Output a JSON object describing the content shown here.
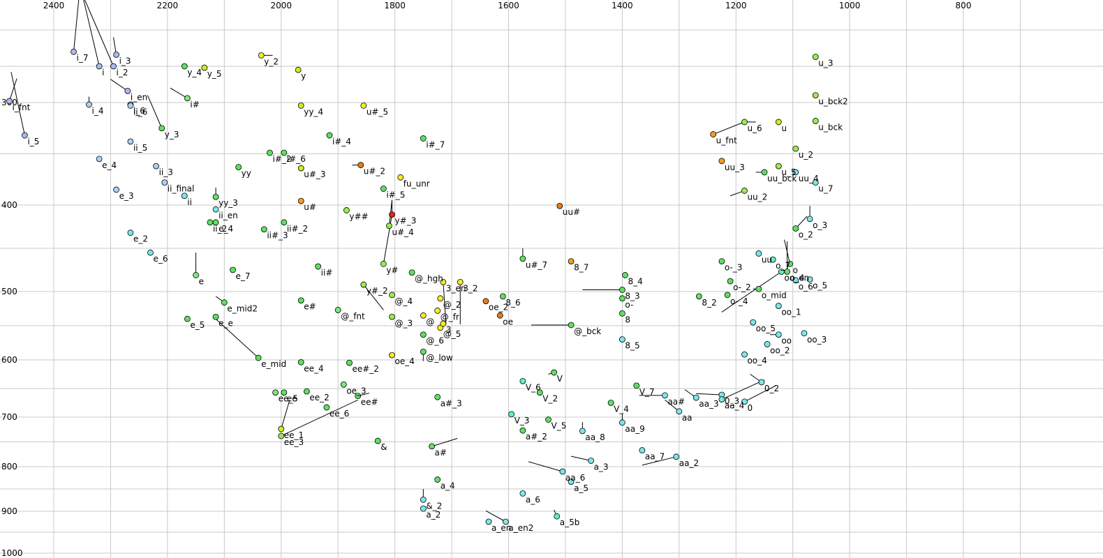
{
  "chart_data": {
    "type": "scatter",
    "title": "",
    "xlabel": "",
    "ylabel": "",
    "x_axis": {
      "reversed": true,
      "ticks": [
        2400,
        2200,
        2000,
        1800,
        1600,
        1400,
        1200,
        1000,
        800
      ]
    },
    "y_axis": {
      "reversed": true,
      "ticks": [
        300,
        400,
        500,
        600,
        700,
        800,
        900,
        1000
      ]
    },
    "grid": true,
    "legend": "none",
    "palette": {
      "v1": "#aab8f0",
      "v2": "#a9d0f5",
      "v3": "#7ee6e6",
      "v4": "#5ef0c8",
      "g1": "#7de87d",
      "g2": "#60e060",
      "g3": "#9aeb50",
      "y1": "#ccee22",
      "y2": "#f0ee22",
      "o1": "#f0a020",
      "o2": "#e87b18",
      "r1": "#e02818"
    },
    "points": [
      {
        "label": "i_7",
        "x": 2365,
        "y": 230,
        "c": "v1",
        "t": [
          2355,
          150
        ]
      },
      {
        "label": "i",
        "x": 2320,
        "y": 250,
        "c": "v1",
        "t": [
          2350,
          150
        ]
      },
      {
        "label": "i_3",
        "x": 2290,
        "y": 234,
        "c": "v1",
        "t": [
          2295,
          210
        ]
      },
      {
        "label": "i_2",
        "x": 2295,
        "y": 250,
        "c": "v1",
        "t": [
          2350,
          150
        ]
      },
      {
        "label": "i_en",
        "x": 2270,
        "y": 284,
        "c": "v1",
        "t": [
          2300,
          268
        ]
      },
      {
        "label": "i_6",
        "x": 2265,
        "y": 302,
        "c": "v2"
      },
      {
        "label": "i_fnt",
        "x": 2478,
        "y": 298,
        "c": "v1",
        "t": [
          2465,
          267
        ]
      },
      {
        "label": "i_4",
        "x": 2338,
        "y": 302,
        "c": "v2",
        "t": [
          2338,
          292
        ]
      },
      {
        "label": "i_5",
        "x": 2451,
        "y": 332,
        "c": "v1",
        "t": [
          2475,
          258
        ]
      },
      {
        "label": "ii_6",
        "x": 2265,
        "y": 303,
        "c": "v2"
      },
      {
        "label": "ii_5",
        "x": 2265,
        "y": 338,
        "c": "v2"
      },
      {
        "label": "e_4",
        "x": 2320,
        "y": 355,
        "c": "v2"
      },
      {
        "label": "e_3",
        "x": 2290,
        "y": 385,
        "c": "v2"
      },
      {
        "label": "ii_3",
        "x": 2220,
        "y": 362,
        "c": "v2"
      },
      {
        "label": "ii_final",
        "x": 2205,
        "y": 378,
        "c": "v2"
      },
      {
        "label": "ii",
        "x": 2170,
        "y": 391,
        "c": "v3"
      },
      {
        "label": "y_3",
        "x": 2210,
        "y": 325,
        "c": "g2",
        "t": [
          2235,
          290
        ]
      },
      {
        "label": "i#",
        "x": 2165,
        "y": 294,
        "c": "g1",
        "t": [
          2195,
          280
        ]
      },
      {
        "label": "y_4",
        "x": 2170,
        "y": 250,
        "c": "g2"
      },
      {
        "label": "y_5",
        "x": 2135,
        "y": 252,
        "c": "y1"
      },
      {
        "label": "yy",
        "x": 2075,
        "y": 363,
        "c": "g2"
      },
      {
        "label": "yy_3",
        "x": 2115,
        "y": 392,
        "c": "g2",
        "t": [
          2115,
          383
        ]
      },
      {
        "label": "ii_en",
        "x": 2115,
        "y": 405,
        "c": "v3"
      },
      {
        "label": "ii_2",
        "x": 2125,
        "y": 420,
        "c": "g2"
      },
      {
        "label": "e_4",
        "x": 2115,
        "y": 420,
        "c": "g2"
      },
      {
        "label": "e_2",
        "x": 2265,
        "y": 432,
        "c": "v3"
      },
      {
        "label": "e_6",
        "x": 2230,
        "y": 455,
        "c": "v3"
      },
      {
        "label": "e",
        "x": 2150,
        "y": 481,
        "c": "g1",
        "t": [
          2150,
          455
        ]
      },
      {
        "label": "e_7",
        "x": 2085,
        "y": 475,
        "c": "g2"
      },
      {
        "label": "e_mid2",
        "x": 2100,
        "y": 516,
        "c": "g2",
        "t": [
          2115,
          507
        ]
      },
      {
        "label": "e_5",
        "x": 2165,
        "y": 540,
        "c": "g2"
      },
      {
        "label": "e_e",
        "x": 2115,
        "y": 537,
        "c": "g2"
      },
      {
        "label": "e_mid",
        "x": 2040,
        "y": 597,
        "c": "g2",
        "t": [
          2115,
          540
        ]
      },
      {
        "label": "i#_2",
        "x": 2020,
        "y": 349,
        "c": "g2"
      },
      {
        "label": "i#_6",
        "x": 1995,
        "y": 349,
        "c": "g2"
      },
      {
        "label": "ii#_3",
        "x": 2030,
        "y": 428,
        "c": "g2"
      },
      {
        "label": "ii#_2",
        "x": 1995,
        "y": 420,
        "c": "g2"
      },
      {
        "label": "y_2",
        "x": 2035,
        "y": 235,
        "c": "y2",
        "t": [
          2015,
          235
        ]
      },
      {
        "label": "y",
        "x": 1970,
        "y": 255,
        "c": "y1"
      },
      {
        "label": "yy_4",
        "x": 1965,
        "y": 303,
        "c": "y1"
      },
      {
        "label": "u#_3",
        "x": 1965,
        "y": 364,
        "c": "y1"
      },
      {
        "label": "u#",
        "x": 1965,
        "y": 396,
        "c": "o1"
      },
      {
        "label": "i#_4",
        "x": 1915,
        "y": 332,
        "c": "g2"
      },
      {
        "label": "ii#",
        "x": 1935,
        "y": 471,
        "c": "g2"
      },
      {
        "label": "e#",
        "x": 1965,
        "y": 513,
        "c": "g2"
      },
      {
        "label": "@_fnt",
        "x": 1900,
        "y": 527,
        "c": "g1"
      },
      {
        "label": "ee_4",
        "x": 1965,
        "y": 604,
        "c": "g2"
      },
      {
        "label": "ee#_2",
        "x": 1880,
        "y": 605,
        "c": "g2"
      },
      {
        "label": "oe_3",
        "x": 1890,
        "y": 643,
        "c": "g1"
      },
      {
        "label": "ee#",
        "x": 1865,
        "y": 663,
        "c": "g2",
        "t": [
          1845,
          658
        ]
      },
      {
        "label": "ee_5",
        "x": 2010,
        "y": 657,
        "c": "g1"
      },
      {
        "label": "ee",
        "x": 1995,
        "y": 657,
        "c": "g2"
      },
      {
        "label": "ee_2",
        "x": 1955,
        "y": 655,
        "c": "g2"
      },
      {
        "label": "ee_6",
        "x": 1920,
        "y": 683,
        "c": "g2"
      },
      {
        "label": "ee_1",
        "x": 2000,
        "y": 724,
        "c": "y1",
        "t": [
          1985,
          670
        ]
      },
      {
        "label": "ee_3",
        "x": 2000,
        "y": 738,
        "c": "g3",
        "t": [
          1865,
          670
        ]
      },
      {
        "label": "&",
        "x": 1830,
        "y": 748,
        "c": "g2"
      },
      {
        "label": "u#_5",
        "x": 1855,
        "y": 303,
        "c": "y2"
      },
      {
        "label": "u#_2",
        "x": 1860,
        "y": 361,
        "c": "o2",
        "t": [
          1875,
          361
        ]
      },
      {
        "label": "i#_5",
        "x": 1820,
        "y": 384,
        "c": "g2"
      },
      {
        "label": "y##",
        "x": 1885,
        "y": 406,
        "c": "g3"
      },
      {
        "label": "y#_3",
        "x": 1805,
        "y": 411,
        "c": "r1",
        "t": [
          1805,
          395
        ]
      },
      {
        "label": "u#_4",
        "x": 1810,
        "y": 424,
        "c": "g3",
        "t": [
          1805,
          395
        ]
      },
      {
        "label": "y#",
        "x": 1820,
        "y": 468,
        "c": "g3",
        "t": [
          1805,
          411
        ]
      },
      {
        "label": "fu_unr",
        "x": 1790,
        "y": 373,
        "c": "y2"
      },
      {
        "label": "i#_7",
        "x": 1750,
        "y": 335,
        "c": "g2"
      },
      {
        "label": "y#_2",
        "x": 1855,
        "y": 492,
        "c": "g3",
        "t": [
          1820,
          527
        ]
      },
      {
        "label": "@_hgh",
        "x": 1770,
        "y": 478,
        "c": "g2"
      },
      {
        "label": "@_4",
        "x": 1805,
        "y": 505,
        "c": "g3"
      },
      {
        "label": "@_3",
        "x": 1805,
        "y": 537,
        "c": "g3"
      },
      {
        "label": "oe_4",
        "x": 1805,
        "y": 593,
        "c": "y2"
      },
      {
        "label": "@_low",
        "x": 1750,
        "y": 588,
        "c": "g2",
        "t": [
          1750,
          602
        ]
      },
      {
        "label": "@",
        "x": 1750,
        "y": 535,
        "c": "y2"
      },
      {
        "label": "@_5",
        "x": 1720,
        "y": 553,
        "c": "y2"
      },
      {
        "label": "@_6",
        "x": 1750,
        "y": 563,
        "c": "g2"
      },
      {
        "label": "@_2",
        "x": 1720,
        "y": 510,
        "c": "y2"
      },
      {
        "label": "@_fr",
        "x": 1725,
        "y": 528,
        "c": "y2"
      },
      {
        "label": "3",
        "x": 1715,
        "y": 547,
        "c": "y2"
      },
      {
        "label": "3_en",
        "x": 1715,
        "y": 489,
        "c": "y2",
        "t": [
          1710,
          548
        ]
      },
      {
        "label": "3_2",
        "x": 1685,
        "y": 489,
        "c": "y2",
        "t": [
          1685,
          548
        ]
      },
      {
        "label": "oe_2",
        "x": 1640,
        "y": 514,
        "c": "o2"
      },
      {
        "label": "oe",
        "x": 1615,
        "y": 535,
        "c": "o2"
      },
      {
        "label": "8_6",
        "x": 1610,
        "y": 507,
        "c": "g2"
      },
      {
        "label": "u#_7",
        "x": 1575,
        "y": 462,
        "c": "g2",
        "t": [
          1575,
          450
        ]
      },
      {
        "label": "a#_3",
        "x": 1725,
        "y": 665,
        "c": "g2"
      },
      {
        "label": "a#",
        "x": 1735,
        "y": 759,
        "c": "g2",
        "t": [
          1690,
          743
        ]
      },
      {
        "label": "a_4",
        "x": 1725,
        "y": 829,
        "c": "g2"
      },
      {
        "label": "&_2",
        "x": 1750,
        "y": 874,
        "c": "v3",
        "t": [
          1750,
          850
        ]
      },
      {
        "label": "a_2",
        "x": 1750,
        "y": 894,
        "c": "v3"
      },
      {
        "label": "a_en",
        "x": 1635,
        "y": 925,
        "c": "v3"
      },
      {
        "label": "a_en2",
        "x": 1605,
        "y": 925,
        "c": "v3",
        "t": [
          1640,
          899
        ]
      },
      {
        "label": "V_6",
        "x": 1575,
        "y": 637,
        "c": "v4"
      },
      {
        "label": "V_2",
        "x": 1545,
        "y": 657,
        "c": "g2"
      },
      {
        "label": "V_3",
        "x": 1595,
        "y": 695,
        "c": "v4"
      },
      {
        "label": "V_5",
        "x": 1530,
        "y": 705,
        "c": "g2"
      },
      {
        "label": "a#_2",
        "x": 1575,
        "y": 727,
        "c": "g2"
      },
      {
        "label": "a_6",
        "x": 1575,
        "y": 860,
        "c": "v3"
      },
      {
        "label": "aa_6",
        "x": 1505,
        "y": 811,
        "c": "v3",
        "t": [
          1565,
          790
        ]
      },
      {
        "label": "a_5",
        "x": 1490,
        "y": 834,
        "c": "v3"
      },
      {
        "label": "a_5b",
        "x": 1515,
        "y": 912,
        "c": "v4",
        "t": [
          1520,
          897
        ]
      },
      {
        "label": "V",
        "x": 1520,
        "y": 622,
        "c": "g2",
        "t": [
          1530,
          625
        ]
      },
      {
        "label": "@_bck",
        "x": 1490,
        "y": 549,
        "c": "g2",
        "t": [
          1560,
          549
        ]
      },
      {
        "label": "8_7",
        "x": 1490,
        "y": 465,
        "c": "o1"
      },
      {
        "label": "uu#",
        "x": 1510,
        "y": 401,
        "c": "o2"
      },
      {
        "label": "aa_8",
        "x": 1470,
        "y": 728,
        "c": "v3",
        "t": [
          1470,
          710
        ]
      },
      {
        "label": "a_3",
        "x": 1455,
        "y": 788,
        "c": "v3",
        "t": [
          1490,
          779
        ]
      },
      {
        "label": "V_4",
        "x": 1420,
        "y": 675,
        "c": "g2"
      },
      {
        "label": "aa_9",
        "x": 1400,
        "y": 711,
        "c": "v3",
        "t": [
          1400,
          695
        ]
      },
      {
        "label": "V_7",
        "x": 1375,
        "y": 645,
        "c": "g2"
      },
      {
        "label": "aa_7",
        "x": 1365,
        "y": 767,
        "c": "v3"
      },
      {
        "label": "aa_2",
        "x": 1305,
        "y": 780,
        "c": "v3",
        "t": [
          1365,
          797
        ]
      },
      {
        "label": "8_4",
        "x": 1395,
        "y": 481,
        "c": "g2"
      },
      {
        "label": "8_3",
        "x": 1400,
        "y": 498,
        "c": "g2",
        "t": [
          1470,
          498
        ]
      },
      {
        "label": "o-",
        "x": 1400,
        "y": 510,
        "c": "g2"
      },
      {
        "label": "8",
        "x": 1400,
        "y": 532,
        "c": "g2"
      },
      {
        "label": "8_5",
        "x": 1400,
        "y": 570,
        "c": "v3"
      },
      {
        "label": "aa#",
        "x": 1325,
        "y": 662,
        "c": "v3",
        "t": [
          1370,
          662
        ]
      },
      {
        "label": "aa",
        "x": 1300,
        "y": 690,
        "c": "v3",
        "t": [
          1325,
          670
        ]
      },
      {
        "label": "aa_3",
        "x": 1270,
        "y": 666,
        "c": "v3",
        "t": [
          1290,
          652
        ]
      },
      {
        "label": "0_3",
        "x": 1225,
        "y": 661,
        "c": "v3",
        "t": [
          1270,
          659
        ]
      },
      {
        "label": "aa_4",
        "x": 1225,
        "y": 669,
        "c": "v3",
        "t": [
          1150,
          635
        ]
      },
      {
        "label": "0_2",
        "x": 1155,
        "y": 639,
        "c": "v3",
        "t": [
          1175,
          625
        ]
      },
      {
        "label": "0",
        "x": 1185,
        "y": 673,
        "c": "v3",
        "t": [
          1130,
          645
        ]
      },
      {
        "label": "8_2",
        "x": 1265,
        "y": 507,
        "c": "g2"
      },
      {
        "label": "o-_3",
        "x": 1225,
        "y": 465,
        "c": "g2"
      },
      {
        "label": "o-_2",
        "x": 1210,
        "y": 488,
        "c": "g2"
      },
      {
        "label": "o-_4",
        "x": 1215,
        "y": 505,
        "c": "g2"
      },
      {
        "label": "oo_4",
        "x": 1185,
        "y": 592,
        "c": "v3"
      },
      {
        "label": "oo_5",
        "x": 1170,
        "y": 545,
        "c": "v3"
      },
      {
        "label": "oo_2",
        "x": 1145,
        "y": 577,
        "c": "v3"
      },
      {
        "label": "oo",
        "x": 1125,
        "y": 563,
        "c": "v3",
        "t": [
          1140,
          563
        ]
      },
      {
        "label": "oo_1",
        "x": 1125,
        "y": 521,
        "c": "v3"
      },
      {
        "label": "o_mid",
        "x": 1160,
        "y": 497,
        "c": "g2",
        "t": [
          1170,
          497
        ]
      },
      {
        "label": "uu",
        "x": 1160,
        "y": 456,
        "c": "v3"
      },
      {
        "label": "o_7",
        "x": 1135,
        "y": 463,
        "c": "v4"
      },
      {
        "label": "oo_en",
        "x": 1120,
        "y": 477,
        "c": "v4",
        "t": [
          1225,
          530
        ]
      },
      {
        "label": "o_4",
        "x": 1110,
        "y": 477,
        "c": "g2",
        "t": [
          1110,
          442
        ]
      },
      {
        "label": "o",
        "x": 1105,
        "y": 468,
        "c": "g2",
        "t": [
          1115,
          440
        ]
      },
      {
        "label": "o_6",
        "x": 1095,
        "y": 487,
        "c": "v3"
      },
      {
        "label": "o_5",
        "x": 1070,
        "y": 486,
        "c": "v3"
      },
      {
        "label": "oo_3",
        "x": 1080,
        "y": 561,
        "c": "v3"
      },
      {
        "label": "o_2",
        "x": 1095,
        "y": 427,
        "c": "g2",
        "t": [
          1075,
          413
        ]
      },
      {
        "label": "o_3",
        "x": 1070,
        "y": 416,
        "c": "v3",
        "t": [
          1070,
          401
        ]
      },
      {
        "label": "u_7",
        "x": 1060,
        "y": 378,
        "c": "v3"
      },
      {
        "label": "uu_4",
        "x": 1095,
        "y": 368,
        "c": "v3"
      },
      {
        "label": "u_2",
        "x": 1095,
        "y": 345,
        "c": "g3"
      },
      {
        "label": "u_5",
        "x": 1125,
        "y": 362,
        "c": "g3"
      },
      {
        "label": "uu_bck",
        "x": 1150,
        "y": 368,
        "c": "g2",
        "t": [
          1165,
          368
        ]
      },
      {
        "label": "u",
        "x": 1125,
        "y": 319,
        "c": "y1"
      },
      {
        "label": "u_6",
        "x": 1185,
        "y": 319,
        "c": "g3",
        "t": [
          1165,
          319
        ]
      },
      {
        "label": "uu_2",
        "x": 1185,
        "y": 386,
        "c": "g3",
        "t": [
          1210,
          391
        ]
      },
      {
        "label": "u_fnt",
        "x": 1240,
        "y": 331,
        "c": "o1",
        "t": [
          1190,
          320
        ]
      },
      {
        "label": "uu_3",
        "x": 1225,
        "y": 357,
        "c": "o1"
      },
      {
        "label": "u_3",
        "x": 1060,
        "y": 237,
        "c": "g3"
      },
      {
        "label": "u_bck2",
        "x": 1060,
        "y": 290,
        "c": "g3"
      },
      {
        "label": "u_bck",
        "x": 1060,
        "y": 318,
        "c": "g3"
      }
    ]
  }
}
